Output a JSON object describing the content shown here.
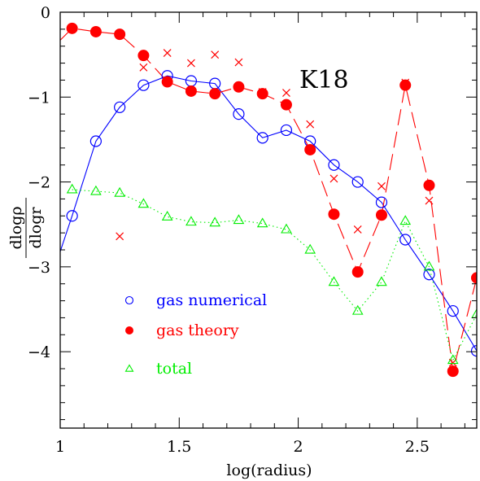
{
  "chart_data": {
    "type": "line",
    "title": "",
    "annotation": "K18",
    "xlabel": "log(radius)",
    "ylabel_numerator": "dlogρ",
    "ylabel_denominator": "dlogr",
    "xlim": [
      1,
      2.75
    ],
    "ylim": [
      -4.9,
      0
    ],
    "xticks": [
      {
        "value": 1,
        "label": "1"
      },
      {
        "value": 1.5,
        "label": "1.5"
      },
      {
        "value": 2,
        "label": "2"
      },
      {
        "value": 2.5,
        "label": "2.5"
      }
    ],
    "yticks": [
      {
        "value": 0,
        "label": "0"
      },
      {
        "value": -1,
        "label": "−1"
      },
      {
        "value": -2,
        "label": "−2"
      },
      {
        "value": -3,
        "label": "−3"
      },
      {
        "value": -4,
        "label": "−4"
      }
    ],
    "grid": false,
    "legend_position": "bottom-left",
    "series": [
      {
        "key": "gas_numerical",
        "name": "gas numerical",
        "color": "#0000ff",
        "marker": "open-circle",
        "line": "solid",
        "points": [
          [
            1.05,
            -2.4
          ],
          [
            1.15,
            -1.52
          ],
          [
            1.25,
            -1.12
          ],
          [
            1.35,
            -0.86
          ],
          [
            1.45,
            -0.75
          ],
          [
            1.55,
            -0.81
          ],
          [
            1.65,
            -0.84
          ],
          [
            1.75,
            -1.2
          ],
          [
            1.85,
            -1.48
          ],
          [
            1.95,
            -1.39
          ],
          [
            2.05,
            -1.52
          ],
          [
            2.15,
            -1.8
          ],
          [
            2.25,
            -2.0
          ],
          [
            2.35,
            -2.24
          ],
          [
            2.45,
            -2.68
          ],
          [
            2.55,
            -3.09
          ],
          [
            2.65,
            -3.52
          ],
          [
            2.75,
            -3.99
          ]
        ],
        "line_extra": [
          [
            1.0,
            -2.82
          ]
        ]
      },
      {
        "key": "gas_theory",
        "name": "gas theory",
        "color": "#ff0000",
        "marker": "filled-circle",
        "line": "long-dash",
        "points": [
          [
            1.05,
            -0.19
          ],
          [
            1.15,
            -0.23
          ],
          [
            1.25,
            -0.26
          ],
          [
            1.35,
            -0.51
          ],
          [
            1.45,
            -0.82
          ],
          [
            1.55,
            -0.93
          ],
          [
            1.65,
            -0.96
          ],
          [
            1.75,
            -0.88
          ],
          [
            1.85,
            -0.96
          ],
          [
            1.95,
            -1.09
          ],
          [
            2.05,
            -1.62
          ],
          [
            2.15,
            -2.38
          ],
          [
            2.25,
            -3.06
          ],
          [
            2.35,
            -2.39
          ],
          [
            2.45,
            -0.86
          ],
          [
            2.55,
            -2.04
          ],
          [
            2.65,
            -4.23
          ],
          [
            2.75,
            -3.13
          ]
        ],
        "line_extra": [
          [
            1.0,
            -0.33
          ]
        ]
      },
      {
        "key": "total",
        "name": "total",
        "color": "#00ee00",
        "marker": "open-triangle",
        "line": "dotted",
        "points": [
          [
            1.05,
            -2.09
          ],
          [
            1.15,
            -2.11
          ],
          [
            1.25,
            -2.13
          ],
          [
            1.35,
            -2.26
          ],
          [
            1.45,
            -2.41
          ],
          [
            1.55,
            -2.47
          ],
          [
            1.65,
            -2.48
          ],
          [
            1.75,
            -2.45
          ],
          [
            1.85,
            -2.49
          ],
          [
            1.95,
            -2.56
          ],
          [
            2.05,
            -2.8
          ],
          [
            2.15,
            -3.18
          ],
          [
            2.25,
            -3.52
          ],
          [
            2.35,
            -3.18
          ],
          [
            2.45,
            -2.46
          ],
          [
            2.55,
            -3.0
          ],
          [
            2.65,
            -4.1
          ],
          [
            2.75,
            -3.56
          ]
        ],
        "line_extra": []
      }
    ],
    "crosses": {
      "color": "#ff0000",
      "points": [
        [
          1.05,
          -0.19
        ],
        [
          1.15,
          -0.23
        ],
        [
          1.25,
          -2.64
        ],
        [
          1.35,
          -0.65
        ],
        [
          1.45,
          -0.48
        ],
        [
          1.55,
          -0.6
        ],
        [
          1.65,
          -0.5
        ],
        [
          1.75,
          -0.59
        ],
        [
          1.85,
          -0.94
        ],
        [
          1.95,
          -0.95
        ],
        [
          2.05,
          -1.32
        ],
        [
          2.15,
          -1.96
        ],
        [
          2.25,
          -2.56
        ],
        [
          2.35,
          -2.05
        ],
        [
          2.45,
          -0.83
        ],
        [
          2.55,
          -2.22
        ],
        [
          2.65,
          -4.13
        ],
        [
          2.75,
          -3.13
        ]
      ]
    }
  }
}
